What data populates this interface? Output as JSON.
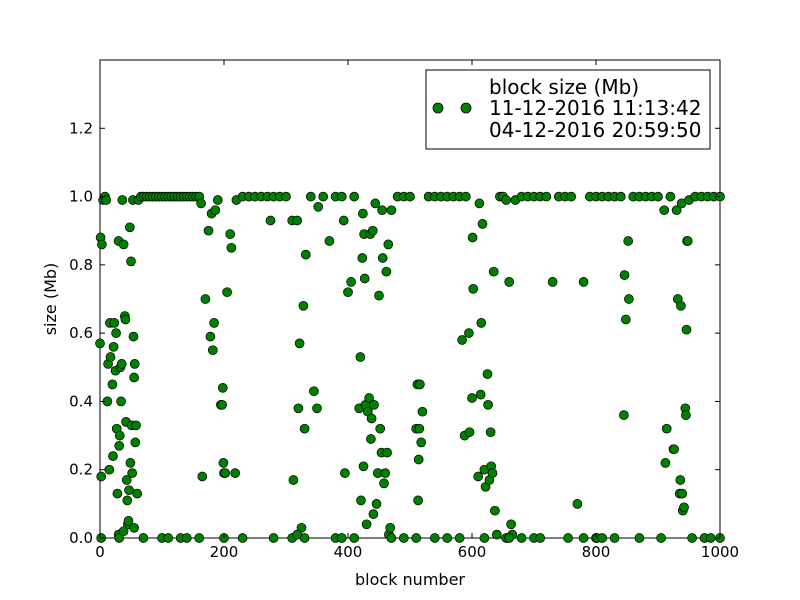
{
  "chart_data": {
    "type": "scatter",
    "xlabel": "block number",
    "ylabel": "size (Mb)",
    "xlim": [
      0,
      1000
    ],
    "ylim": [
      0,
      1.4
    ],
    "x_ticks": [
      "0",
      "200",
      "400",
      "600",
      "800",
      "1000"
    ],
    "y_ticks": [
      "0.0",
      "0.2",
      "0.4",
      "0.6",
      "0.8",
      "1.0",
      "1.2"
    ],
    "grid": false,
    "legend_placement": "top-right",
    "legend": {
      "title": "block size (Mb)",
      "entries": [
        "11-12-2016 11:13:42",
        "04-12-2016 20:59:50"
      ]
    },
    "marker_color": "#008000",
    "series": [
      {
        "name": "11-12-2016 11:13:42",
        "points": [
          [
            0,
            0.57
          ],
          [
            1,
            0.88
          ],
          [
            2,
            0.18
          ],
          [
            3,
            0.86
          ],
          [
            5,
            0.99
          ],
          [
            8,
            1.0
          ],
          [
            10,
            0.99
          ],
          [
            12,
            0.4
          ],
          [
            13,
            0.51
          ],
          [
            15,
            0.2
          ],
          [
            16,
            0.63
          ],
          [
            17,
            0.53
          ],
          [
            20,
            0.45
          ],
          [
            21,
            0.24
          ],
          [
            22,
            0.56
          ],
          [
            23,
            0.63
          ],
          [
            25,
            0.49
          ],
          [
            26,
            0.6
          ],
          [
            27,
            0.32
          ],
          [
            28,
            0.13
          ],
          [
            30,
            0.87
          ],
          [
            31,
            0.27
          ],
          [
            32,
            0.3
          ],
          [
            33,
            0.5
          ],
          [
            34,
            0.4
          ],
          [
            35,
            0.51
          ],
          [
            36,
            0.99
          ],
          [
            38,
            0.86
          ],
          [
            40,
            0.65
          ],
          [
            41,
            0.64
          ],
          [
            42,
            0.34
          ],
          [
            43,
            0.17
          ],
          [
            44,
            0.11
          ],
          [
            45,
            0.04
          ],
          [
            46,
            0.05
          ],
          [
            47,
            0.14
          ],
          [
            48,
            0.91
          ],
          [
            49,
            0.22
          ],
          [
            50,
            0.81
          ],
          [
            51,
            0.33
          ],
          [
            52,
            0.19
          ],
          [
            53,
            0.99
          ],
          [
            54,
            0.59
          ],
          [
            55,
            0.47
          ],
          [
            56,
            0.51
          ],
          [
            57,
            0.28
          ],
          [
            58,
            0.33
          ],
          [
            60,
            0.13
          ],
          [
            62,
            0.99
          ],
          [
            66,
            1.0
          ],
          [
            70,
            1.0
          ],
          [
            75,
            1.0
          ],
          [
            80,
            1.0
          ],
          [
            85,
            1.0
          ],
          [
            90,
            1.0
          ],
          [
            95,
            1.0
          ],
          [
            100,
            1.0
          ],
          [
            105,
            1.0
          ],
          [
            110,
            1.0
          ],
          [
            115,
            1.0
          ],
          [
            120,
            1.0
          ],
          [
            125,
            1.0
          ],
          [
            130,
            1.0
          ],
          [
            135,
            1.0
          ],
          [
            140,
            1.0
          ],
          [
            145,
            1.0
          ],
          [
            150,
            1.0
          ],
          [
            155,
            1.0
          ],
          [
            160,
            1.0
          ],
          [
            163,
            0.98
          ],
          [
            165,
            0.18
          ],
          [
            170,
            0.7
          ],
          [
            175,
            0.9
          ],
          [
            178,
            0.59
          ],
          [
            180,
            0.95
          ],
          [
            182,
            0.55
          ],
          [
            184,
            0.63
          ],
          [
            186,
            0.96
          ],
          [
            190,
            0.99
          ],
          [
            195,
            0.39
          ],
          [
            197,
            0.39
          ],
          [
            198,
            0.44
          ],
          [
            199,
            0.22
          ],
          [
            200,
            0.19
          ],
          [
            202,
            0.19
          ],
          [
            205,
            0.72
          ],
          [
            210,
            0.89
          ],
          [
            212,
            0.85
          ],
          [
            218,
            0.19
          ],
          [
            220,
            0.99
          ],
          [
            230,
            1.0
          ],
          [
            240,
            1.0
          ],
          [
            250,
            1.0
          ],
          [
            260,
            1.0
          ],
          [
            270,
            1.0
          ],
          [
            275,
            0.93
          ],
          [
            280,
            1.0
          ],
          [
            290,
            1.0
          ],
          [
            300,
            1.0
          ],
          [
            310,
            0.93
          ],
          [
            312,
            0.17
          ],
          [
            318,
            0.93
          ],
          [
            320,
            0.38
          ],
          [
            322,
            0.57
          ],
          [
            325,
            0.03
          ],
          [
            328,
            0.68
          ],
          [
            330,
            0.32
          ],
          [
            332,
            0.83
          ],
          [
            340,
            1.0
          ],
          [
            345,
            0.43
          ],
          [
            350,
            0.38
          ],
          [
            352,
            0.97
          ],
          [
            360,
            1.0
          ],
          [
            370,
            0.87
          ],
          [
            380,
            1.0
          ],
          [
            390,
            1.0
          ],
          [
            393,
            0.93
          ],
          [
            395,
            0.19
          ],
          [
            400,
            0.72
          ],
          [
            405,
            0.75
          ],
          [
            410,
            1.0
          ],
          [
            418,
            0.38
          ],
          [
            420,
            0.53
          ],
          [
            421,
            0.11
          ],
          [
            423,
            0.82
          ],
          [
            424,
            0.95
          ],
          [
            425,
            0.21
          ],
          [
            426,
            0.89
          ],
          [
            427,
            0.76
          ],
          [
            428,
            0.39
          ],
          [
            430,
            0.04
          ],
          [
            432,
            0.37
          ],
          [
            434,
            0.41
          ],
          [
            436,
            0.89
          ],
          [
            437,
            0.29
          ],
          [
            438,
            0.35
          ],
          [
            440,
            0.9
          ],
          [
            441,
            0.07
          ],
          [
            442,
            0.39
          ],
          [
            444,
            0.98
          ],
          [
            446,
            0.1
          ],
          [
            448,
            0.19
          ],
          [
            450,
            0.71
          ],
          [
            452,
            0.32
          ],
          [
            454,
            0.25
          ],
          [
            455,
            0.96
          ],
          [
            456,
            0.82
          ],
          [
            458,
            0.16
          ],
          [
            460,
            0.19
          ],
          [
            462,
            0.78
          ],
          [
            463,
            0.25
          ],
          [
            465,
            0.86
          ],
          [
            466,
            0.01
          ],
          [
            468,
            0.03
          ],
          [
            470,
            0.96
          ],
          [
            480,
            1.0
          ],
          [
            490,
            1.0
          ],
          [
            500,
            1.0
          ],
          [
            510,
            0.32
          ],
          [
            512,
            0.45
          ],
          [
            513,
            0.11
          ],
          [
            514,
            0.23
          ],
          [
            515,
            0.32
          ],
          [
            516,
            0.45
          ],
          [
            518,
            0.28
          ],
          [
            520,
            0.37
          ],
          [
            530,
            1.0
          ],
          [
            540,
            1.0
          ],
          [
            550,
            1.0
          ],
          [
            560,
            1.0
          ],
          [
            570,
            1.0
          ],
          [
            580,
            1.0
          ],
          [
            584,
            0.58
          ],
          [
            588,
            0.3
          ],
          [
            590,
            1.0
          ],
          [
            595,
            0.6
          ],
          [
            596,
            0.31
          ],
          [
            600,
            0.41
          ],
          [
            601,
            0.88
          ],
          [
            602,
            0.73
          ],
          [
            610,
            0.18
          ],
          [
            612,
            0.98
          ],
          [
            614,
            0.42
          ],
          [
            615,
            0.63
          ],
          [
            617,
            0.92
          ],
          [
            620,
            0.2
          ],
          [
            622,
            0.15
          ],
          [
            625,
            0.48
          ],
          [
            626,
            0.39
          ],
          [
            628,
            0.17
          ],
          [
            630,
            0.31
          ],
          [
            631,
            0.21
          ],
          [
            633,
            0.19
          ],
          [
            635,
            0.78
          ],
          [
            637,
            0.08
          ],
          [
            640,
            0.01
          ],
          [
            645,
            1.0
          ],
          [
            650,
            1.0
          ],
          [
            655,
            0.99
          ],
          [
            660,
            0.75
          ],
          [
            663,
            0.04
          ],
          [
            665,
            0.01
          ],
          [
            670,
            0.99
          ],
          [
            680,
            1.0
          ],
          [
            690,
            1.0
          ],
          [
            700,
            1.0
          ],
          [
            710,
            1.0
          ],
          [
            720,
            1.0
          ],
          [
            730,
            0.75
          ],
          [
            740,
            1.0
          ],
          [
            750,
            1.0
          ],
          [
            760,
            1.0
          ],
          [
            770,
            0.1
          ],
          [
            780,
            0.75
          ],
          [
            790,
            1.0
          ],
          [
            800,
            1.0
          ],
          [
            810,
            1.0
          ],
          [
            820,
            1.0
          ],
          [
            830,
            1.0
          ],
          [
            840,
            1.0
          ],
          [
            845,
            0.36
          ],
          [
            846,
            0.77
          ],
          [
            848,
            0.64
          ],
          [
            852,
            0.87
          ],
          [
            853,
            0.7
          ],
          [
            860,
            1.0
          ],
          [
            870,
            1.0
          ],
          [
            880,
            1.0
          ],
          [
            890,
            1.0
          ],
          [
            900,
            1.0
          ],
          [
            910,
            0.96
          ],
          [
            912,
            0.22
          ],
          [
            914,
            0.32
          ],
          [
            920,
            1.0
          ],
          [
            925,
            0.26
          ],
          [
            926,
            0.26
          ],
          [
            930,
            0.96
          ],
          [
            932,
            0.7
          ],
          [
            935,
            0.13
          ],
          [
            936,
            0.17
          ],
          [
            937,
            0.68
          ],
          [
            938,
            0.98
          ],
          [
            939,
            0.13
          ],
          [
            940,
            0.08
          ],
          [
            942,
            0.09
          ],
          [
            944,
            0.38
          ],
          [
            945,
            0.36
          ],
          [
            946,
            0.61
          ],
          [
            947,
            0.87
          ],
          [
            948,
            0.87
          ],
          [
            950,
            0.99
          ],
          [
            960,
            1.0
          ],
          [
            970,
            1.0
          ],
          [
            980,
            1.0
          ],
          [
            990,
            1.0
          ],
          [
            1000,
            1.0
          ]
        ]
      },
      {
        "name": "04-12-2016 20:59:50",
        "points": [
          [
            2,
            0.0
          ],
          [
            30,
            0.01
          ],
          [
            31,
            0.0
          ],
          [
            38,
            0.02
          ],
          [
            55,
            0.03
          ],
          [
            70,
            0.0
          ],
          [
            100,
            0.0
          ],
          [
            110,
            0.0
          ],
          [
            130,
            0.0
          ],
          [
            140,
            0.0
          ],
          [
            160,
            0.0
          ],
          [
            200,
            0.0
          ],
          [
            230,
            0.0
          ],
          [
            280,
            0.0
          ],
          [
            310,
            0.0
          ],
          [
            318,
            0.01
          ],
          [
            330,
            0.0
          ],
          [
            380,
            0.0
          ],
          [
            390,
            0.0
          ],
          [
            410,
            0.0
          ],
          [
            470,
            0.0
          ],
          [
            490,
            0.0
          ],
          [
            510,
            0.0
          ],
          [
            540,
            0.0
          ],
          [
            560,
            0.0
          ],
          [
            580,
            0.0
          ],
          [
            620,
            0.0
          ],
          [
            655,
            0.0
          ],
          [
            660,
            0.0
          ],
          [
            680,
            0.0
          ],
          [
            700,
            0.0
          ],
          [
            710,
            0.0
          ],
          [
            755,
            0.0
          ],
          [
            780,
            0.0
          ],
          [
            800,
            0.0
          ],
          [
            802,
            0.0
          ],
          [
            810,
            0.0
          ],
          [
            830,
            0.0
          ],
          [
            870,
            0.0
          ],
          [
            905,
            0.0
          ],
          [
            955,
            0.0
          ],
          [
            975,
            0.0
          ],
          [
            985,
            0.0
          ],
          [
            1000,
            0.0
          ]
        ]
      }
    ]
  }
}
